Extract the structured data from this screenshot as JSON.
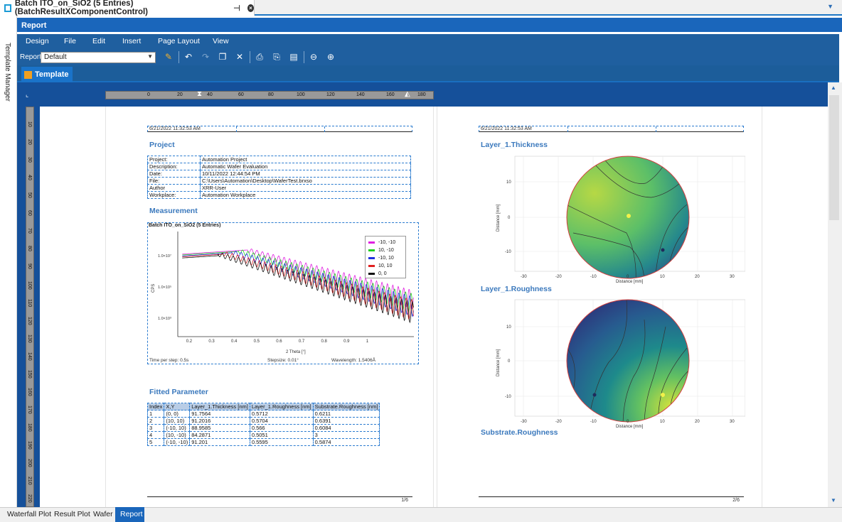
{
  "doc_tab": {
    "title": "Batch ITO_on_SiO2 (5 Entries) (BatchResultXComponentControl)",
    "pin_glyph": "⊣",
    "close_glyph": "×",
    "dropdown_glyph": "▼"
  },
  "side_panel": {
    "label": "Template Manager"
  },
  "report_header": {
    "title": "Report"
  },
  "menu": [
    "Design",
    "File",
    "Edit",
    "Insert",
    "Page Layout",
    "View"
  ],
  "toolbar": {
    "report_label": "Report",
    "report_value": "Default"
  },
  "template_tab": {
    "label": "Template"
  },
  "ruler": {
    "h_ticks": [
      "0",
      "20",
      "40",
      "60",
      "80",
      "100",
      "120",
      "140",
      "160",
      "180"
    ],
    "v_ticks": [
      "10",
      "20",
      "30",
      "40",
      "50",
      "60",
      "70",
      "80",
      "90",
      "100",
      "110",
      "120",
      "130",
      "140",
      "150",
      "160",
      "170",
      "180",
      "190",
      "200",
      "210",
      "220"
    ]
  },
  "page1": {
    "header_date": "6/21/2022 11:32:53 AM",
    "project_title": "Project",
    "project_rows": [
      [
        "Project:",
        "Automation Project"
      ],
      [
        "Description:",
        "Automatic Wafer Evaluation"
      ],
      [
        "Date:",
        "10/11/2022 12:44:54 PM"
      ],
      [
        "File:",
        "C:\\Users\\Automation\\Desktop\\WaferTest.brxso"
      ],
      [
        "Author",
        "XRR-User"
      ],
      [
        "Workplace:",
        "Automation Workplace"
      ]
    ],
    "measurement_title": "Measurement",
    "chart_box_title": "Batch ITO_on_SiO2 (5 Entries)",
    "time_per_step": "Time per step: 0.5s",
    "stepsize": "Stepsize: 0.01°",
    "wavelength": "Wavelength: 1.5406Å",
    "fitted_title": "Fitted Parameter",
    "fitted_headers": [
      "Index",
      "X,Y",
      "Layer_1.Thickness [nm]",
      "Layer_1.Roughness [nm]",
      "Substrate.Roughness [nm]"
    ],
    "fitted_rows": [
      [
        "1",
        "(0, 0)",
        "91.7564",
        "0.5712",
        "0.6211"
      ],
      [
        "2",
        "(10, 10)",
        "91.2016",
        "0.5704",
        "0.6391"
      ],
      [
        "3",
        "(-10, 10)",
        "88.9585",
        "0.566",
        "0.6084"
      ],
      [
        "4",
        "(10, -10)",
        "84.2871",
        "0.5051",
        "3"
      ],
      [
        "5",
        "(-10, -10)",
        "91.201",
        "0.5595",
        "0.5874"
      ]
    ],
    "footer_page": "1/6"
  },
  "page2": {
    "header_date": "6/21/2022 11:32:53 AM",
    "thickness_title": "Layer_1.Thickness",
    "roughness_title": "Layer_1.Roughness",
    "substrate_title": "Substrate.Roughness",
    "footer_page": "2/6",
    "map_xlabel": "Distance [mm]",
    "map_ylabel": "Distance [mm]",
    "map_xticks": [
      "-30",
      "-20",
      "-10",
      "0",
      "10",
      "20",
      "30"
    ],
    "map_yticks": [
      "10",
      "0",
      "-10"
    ]
  },
  "chart_data": {
    "type": "line",
    "xlabel": "2 Theta [°]",
    "ylabel": "CPS",
    "xlim": [
      0.15,
      1.2
    ],
    "log_y": true,
    "yticks": [
      "1.0×10⁷",
      "1.0×10⁵",
      "1.0×10³"
    ],
    "xticks": [
      "0.2",
      "0.3",
      "0.4",
      "0.5",
      "0.6",
      "0.7",
      "0.8",
      "0.9",
      "1"
    ],
    "legend_position": "top-right",
    "series": [
      {
        "name": "-10, -10",
        "color": "#e020e0",
        "peak_x": 0.46
      },
      {
        "name": "10, -10",
        "color": "#20d020",
        "peak_x": 0.42
      },
      {
        "name": "-10, 10",
        "color": "#2030e0",
        "peak_x": 0.39
      },
      {
        "name": "10, 10",
        "color": "#e02020",
        "peak_x": 0.35
      },
      {
        "name": "0, 0",
        "color": "#111111",
        "peak_x": 0.33
      }
    ]
  },
  "bottom_tabs": [
    "Waterfall Plot",
    "Result Plot",
    "Wafer",
    "Report"
  ]
}
